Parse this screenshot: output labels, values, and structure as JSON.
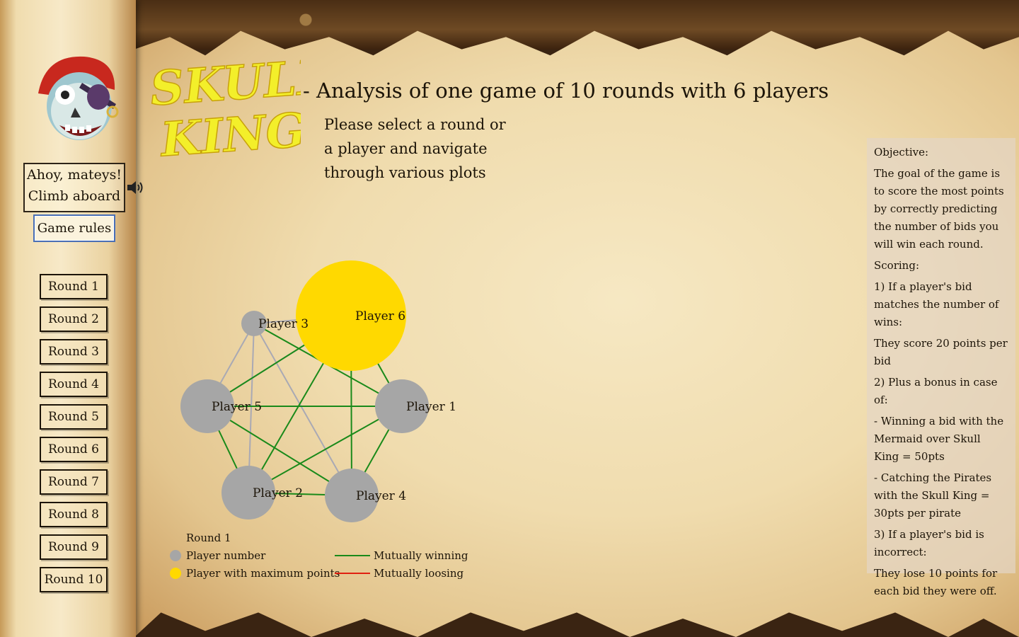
{
  "header": {
    "logo_text_top": "SKULL",
    "logo_text_bottom": "KING",
    "title": "- Analysis of one game of 10 rounds with 6 players",
    "instructions": [
      "Please select a round or",
      "a player and navigate",
      "through various plots"
    ]
  },
  "sidebar": {
    "greeting_line1": "Ahoy, mateys!",
    "greeting_line2": "Climb aboard",
    "rules_button": "Game rules",
    "rounds": [
      "Round 1",
      "Round 2",
      "Round 3",
      "Round 4",
      "Round 5",
      "Round 6",
      "Round 7",
      "Round 8",
      "Round 9",
      "Round 10"
    ]
  },
  "graph": {
    "players": [
      {
        "id": "p1",
        "label": "Player 1",
        "max": false
      },
      {
        "id": "p2",
        "label": "Player 2",
        "max": false
      },
      {
        "id": "p3",
        "label": "Player 3",
        "max": false
      },
      {
        "id": "p4",
        "label": "Player 4",
        "max": false
      },
      {
        "id": "p5",
        "label": "Player 5",
        "max": false
      },
      {
        "id": "p6",
        "label": "Player 6",
        "max": true
      }
    ],
    "edges_winning": [
      [
        "p6",
        "p5"
      ],
      [
        "p6",
        "p2"
      ],
      [
        "p6",
        "p4"
      ],
      [
        "p6",
        "p1"
      ],
      [
        "p5",
        "p1"
      ],
      [
        "p5",
        "p2"
      ],
      [
        "p5",
        "p4"
      ],
      [
        "p1",
        "p2"
      ],
      [
        "p1",
        "p4"
      ],
      [
        "p2",
        "p4"
      ],
      [
        "p3",
        "p1"
      ]
    ],
    "edges_neutral": [
      [
        "p3",
        "p6"
      ],
      [
        "p3",
        "p5"
      ],
      [
        "p3",
        "p2"
      ],
      [
        "p3",
        "p4"
      ],
      [
        "p5",
        "p6"
      ]
    ],
    "legend": {
      "title": "Round 1",
      "player_number": "Player number",
      "player_max": "Player with maximum points",
      "mutually_winning": "Mutually winning",
      "mutually_losing": "Mutually loosing"
    },
    "colors": {
      "node": "#a6a6a6",
      "node_max": "#ffd900",
      "winning": "#1a8a1a",
      "losing": "#e02010",
      "neutral": "#a9a9b4"
    }
  },
  "info_panel": {
    "paragraphs": [
      "Objective:",
      "The goal of the game is to score the most points by correctly predicting the number of bids you will win each round.",
      "Scoring:",
      "1) If a player's bid matches the number of wins:",
      "They score 20 points per bid",
      "2) Plus a bonus in case of:",
      "- Winning a bid with the Mermaid over Skull King = 50pts",
      "- Catching the Pirates with the Skull King = 30pts per pirate",
      "3) If a player's bid is incorrect:",
      "They lose 10 points for each bid they were off."
    ]
  }
}
